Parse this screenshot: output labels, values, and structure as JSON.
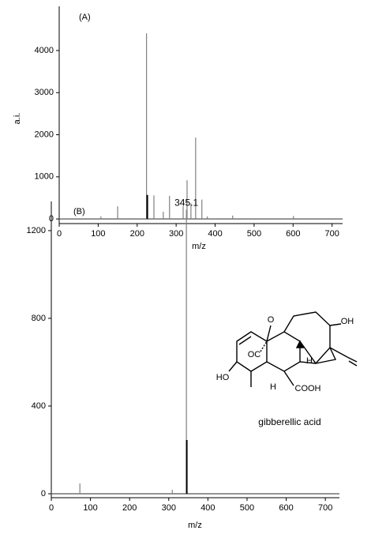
{
  "chart_data": [
    {
      "type": "stem",
      "panel_label": "(A)",
      "y_label": "a.i.",
      "x_label": "m/z",
      "xlim": [
        0,
        727
      ],
      "ylim": [
        -110,
        5050
      ],
      "xticks": [
        0,
        100,
        200,
        300,
        400,
        500,
        600,
        700
      ],
      "yticks": [
        0,
        1000,
        2000,
        3000,
        4000
      ],
      "series": [
        {
          "color": "#808080",
          "x": [
            107,
            150,
            224,
            243,
            267,
            283,
            318,
            328,
            338,
            350,
            366,
            380,
            445,
            601
          ],
          "values": [
            60,
            300,
            4410,
            560,
            170,
            550,
            300,
            920,
            370,
            1930,
            460,
            60,
            80,
            70
          ]
        },
        {
          "color": "#000000",
          "x": [
            226
          ],
          "values": [
            570
          ]
        }
      ]
    },
    {
      "type": "stem",
      "panel_label": "(B)",
      "x_label": "m/z",
      "xlim": [
        0,
        736
      ],
      "ylim": [
        -18,
        1333
      ],
      "xticks": [
        0,
        100,
        200,
        300,
        400,
        500,
        600,
        700
      ],
      "yticks": [
        0,
        400,
        800,
        1200
      ],
      "series": [
        {
          "color": "#808080",
          "x": [
            73,
            309,
            345.1
          ],
          "values": [
            47,
            18,
            1295
          ]
        },
        {
          "color": "#000000",
          "x": [
            346
          ],
          "values": [
            245
          ]
        }
      ],
      "annotation": "gibberellic acid",
      "structure_labels": [
        "O",
        "OC",
        "HO",
        "H",
        "H",
        "COOH",
        "OH"
      ]
    }
  ]
}
